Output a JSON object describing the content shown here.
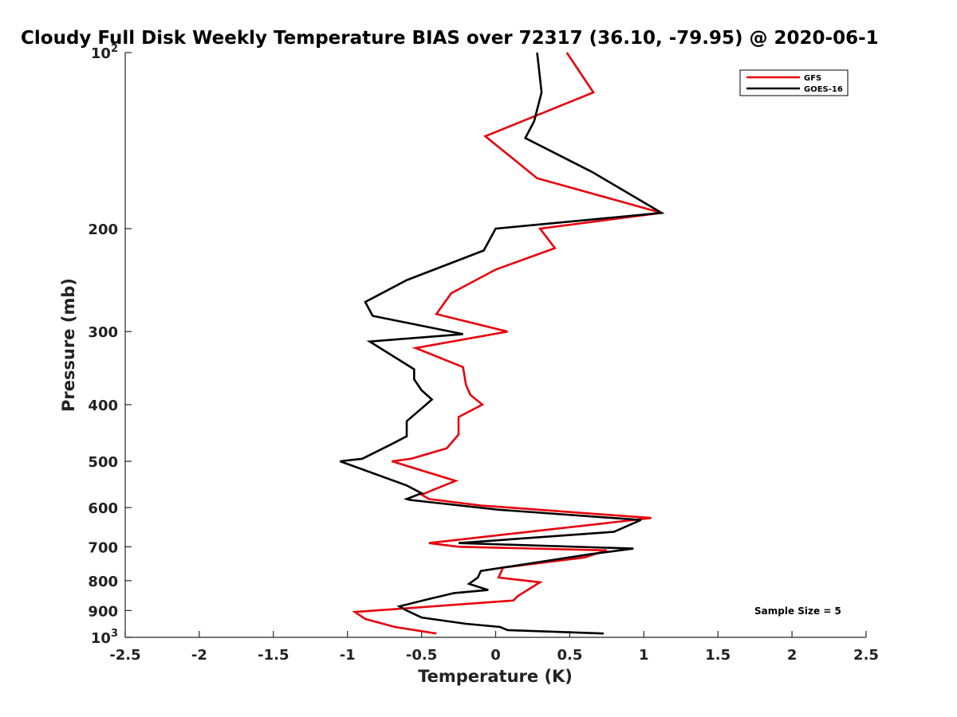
{
  "chart_data": {
    "type": "line",
    "title": "Cloudy Full Disk Weekly Temperature BIAS over 72317 (36.10, -79.95) @ 2020-06-1",
    "xlabel": "Temperature (K)",
    "ylabel": "Pressure (mb)",
    "xlim": [
      -2.5,
      2.5
    ],
    "ylim": [
      100,
      1000
    ],
    "yscale": "log",
    "y_reversed": true,
    "x_ticks": [
      "-2.5",
      "-2",
      "-1.5",
      "-1",
      "-0.5",
      "0",
      "0.5",
      "1",
      "1.5",
      "2",
      "2.5"
    ],
    "y_ticks": [
      {
        "value": 100,
        "base": "10",
        "exp": "2"
      },
      {
        "value": 200,
        "label": "200"
      },
      {
        "value": 300,
        "label": "300"
      },
      {
        "value": 400,
        "label": "400"
      },
      {
        "value": 500,
        "label": "500"
      },
      {
        "value": 600,
        "label": "600"
      },
      {
        "value": 700,
        "label": "700"
      },
      {
        "value": 800,
        "label": "800"
      },
      {
        "value": 900,
        "label": "900"
      },
      {
        "value": 1000,
        "base": "10",
        "exp": "3"
      }
    ],
    "legend": {
      "placement": "top-right"
    },
    "annotation": "Sample Size = 5",
    "series": [
      {
        "name": "GFS",
        "color": "#e8000b",
        "points": [
          [
            0.48,
            100
          ],
          [
            0.66,
            117
          ],
          [
            -0.07,
            139
          ],
          [
            0.28,
            164
          ],
          [
            1.12,
            188
          ],
          [
            0.3,
            200
          ],
          [
            0.4,
            216
          ],
          [
            0.0,
            235
          ],
          [
            -0.3,
            258
          ],
          [
            -0.4,
            280
          ],
          [
            0.08,
            300
          ],
          [
            -0.54,
            320
          ],
          [
            -0.22,
            345
          ],
          [
            -0.2,
            370
          ],
          [
            -0.17,
            385
          ],
          [
            -0.09,
            400
          ],
          [
            -0.25,
            420
          ],
          [
            -0.25,
            450
          ],
          [
            -0.33,
            475
          ],
          [
            -0.57,
            495
          ],
          [
            -0.7,
            500
          ],
          [
            -0.27,
            540
          ],
          [
            -0.5,
            570
          ],
          [
            -0.45,
            580
          ],
          [
            -0.1,
            595
          ],
          [
            1.05,
            625
          ],
          [
            -0.45,
            690
          ],
          [
            -0.25,
            700
          ],
          [
            0.75,
            710
          ],
          [
            0.6,
            730
          ],
          [
            0.05,
            760
          ],
          [
            0.02,
            790
          ],
          [
            0.3,
            805
          ],
          [
            0.15,
            850
          ],
          [
            0.12,
            865
          ],
          [
            -0.95,
            905
          ],
          [
            -0.88,
            930
          ],
          [
            -0.68,
            960
          ],
          [
            -0.4,
            985
          ]
        ]
      },
      {
        "name": "GOES-16",
        "color": "#000000",
        "points": [
          [
            0.28,
            100
          ],
          [
            0.31,
            117
          ],
          [
            0.26,
            131
          ],
          [
            0.2,
            140
          ],
          [
            0.65,
            160
          ],
          [
            1.12,
            188
          ],
          [
            0.0,
            200
          ],
          [
            -0.08,
            218
          ],
          [
            -0.6,
            245
          ],
          [
            -0.88,
            267
          ],
          [
            -0.83,
            282
          ],
          [
            -0.22,
            303
          ],
          [
            -0.85,
            312
          ],
          [
            -0.55,
            348
          ],
          [
            -0.55,
            362
          ],
          [
            -0.5,
            378
          ],
          [
            -0.43,
            392
          ],
          [
            -0.47,
            400
          ],
          [
            -0.6,
            427
          ],
          [
            -0.6,
            453
          ],
          [
            -0.7,
            467
          ],
          [
            -0.9,
            495
          ],
          [
            -1.05,
            500
          ],
          [
            -0.6,
            550
          ],
          [
            -0.5,
            567
          ],
          [
            -0.6,
            580
          ],
          [
            -0.58,
            582
          ],
          [
            0.02,
            605
          ],
          [
            0.98,
            630
          ],
          [
            0.8,
            660
          ],
          [
            -0.25,
            690
          ],
          [
            0.93,
            705
          ],
          [
            0.65,
            720
          ],
          [
            -0.1,
            770
          ],
          [
            -0.12,
            790
          ],
          [
            -0.18,
            810
          ],
          [
            -0.05,
            830
          ],
          [
            -0.28,
            840
          ],
          [
            -0.45,
            860
          ],
          [
            -0.65,
            885
          ],
          [
            -0.6,
            900
          ],
          [
            -0.5,
            925
          ],
          [
            -0.2,
            948
          ],
          [
            0.03,
            960
          ],
          [
            0.08,
            972
          ],
          [
            0.73,
            985
          ]
        ]
      }
    ]
  }
}
